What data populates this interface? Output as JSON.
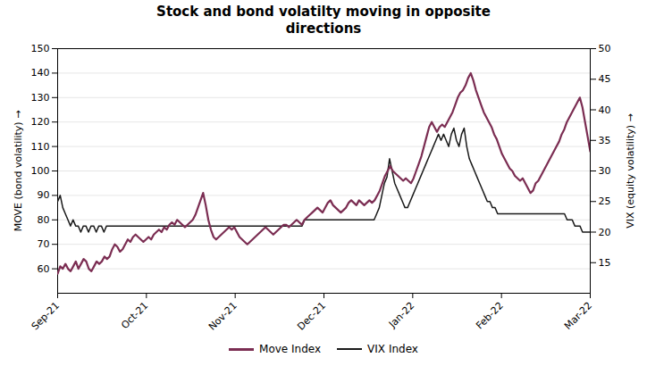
{
  "chart_data": {
    "type": "line",
    "title": "Stock and bond volatilty moving in opposite\ndirections",
    "ylabel": "MOVE (bond volatility)",
    "y2label": "VIX (equity volatility)",
    "xlim": [
      0,
      1
    ],
    "xticks": [
      {
        "value": 0,
        "label": "Sep-21"
      },
      {
        "value": 0.16666666666666666,
        "label": "Oct-21"
      },
      {
        "value": 0.3333333333333333,
        "label": "Nov-21"
      },
      {
        "value": 0.5,
        "label": "Dec-21"
      },
      {
        "value": 0.6666666666666666,
        "label": "Jan-22"
      },
      {
        "value": 0.8333333333333334,
        "label": "Feb-22"
      },
      {
        "value": 1,
        "label": "Mar-22"
      }
    ],
    "ylim": [
      50,
      150
    ],
    "yticks": [
      60,
      70,
      80,
      90,
      100,
      110,
      120,
      130,
      140,
      150
    ],
    "y2lim": [
      10,
      50
    ],
    "y2ticks": [
      15,
      20,
      25,
      30,
      35,
      40,
      45,
      50
    ],
    "grid": true,
    "legend": "bottom",
    "series": [
      {
        "name": "Move Index",
        "color": "#7B2D52",
        "values": [
          58,
          61,
          60,
          62,
          60,
          59,
          61,
          63,
          60,
          62,
          64,
          63,
          60,
          59,
          61,
          63,
          62,
          63,
          65,
          64,
          65,
          68,
          70,
          69,
          67,
          68,
          70,
          72,
          71,
          73,
          74,
          73,
          72,
          71,
          72,
          73,
          72,
          74,
          75,
          76,
          75,
          77,
          76,
          78,
          79,
          78,
          80,
          79,
          78,
          77,
          78,
          79,
          80,
          82,
          85,
          88,
          91,
          86,
          80,
          76,
          73,
          72,
          73,
          74,
          75,
          76,
          77,
          76,
          77,
          75,
          73,
          72,
          71,
          70,
          71,
          72,
          73,
          74,
          75,
          76,
          77,
          76,
          75,
          74,
          75,
          76,
          77,
          78,
          78,
          77,
          78,
          79,
          80,
          79,
          78,
          80,
          81,
          82,
          83,
          84,
          85,
          84,
          83,
          85,
          87,
          88,
          86,
          85,
          84,
          83,
          84,
          85,
          87,
          88,
          87,
          86,
          88,
          87,
          86,
          87,
          88,
          87,
          88,
          90,
          92,
          95,
          98,
          100,
          102,
          100,
          99,
          98,
          97,
          96,
          97,
          96,
          95,
          97,
          100,
          103,
          106,
          110,
          114,
          118,
          120,
          118,
          116,
          118,
          119,
          118,
          120,
          122,
          124,
          127,
          130,
          132,
          133,
          135,
          138,
          140,
          137,
          133,
          130,
          127,
          124,
          122,
          120,
          118,
          115,
          113,
          110,
          107,
          105,
          103,
          101,
          100,
          98,
          97,
          96,
          97,
          95,
          93,
          91,
          92,
          95,
          96,
          98,
          100,
          102,
          104,
          106,
          108,
          110,
          112,
          115,
          117,
          120,
          122,
          124,
          126,
          128,
          130,
          126,
          120,
          114,
          108
        ]
      },
      {
        "name": "VIX Index",
        "color": "#1a1a1a",
        "axis": "y2",
        "values": [
          25,
          26,
          24,
          23,
          22,
          21,
          22,
          21,
          21,
          20,
          21,
          21,
          20,
          21,
          21,
          20,
          21,
          21,
          20,
          21,
          21,
          21,
          21,
          21,
          21,
          21,
          21,
          21,
          21,
          21,
          21,
          21,
          21,
          21,
          21,
          21,
          21,
          21,
          21,
          21,
          21,
          21,
          21,
          21,
          21,
          21,
          21,
          21,
          21,
          21,
          21,
          21,
          21,
          21,
          21,
          21,
          21,
          21,
          21,
          21,
          21,
          21,
          21,
          21,
          21,
          21,
          21,
          21,
          21,
          21,
          21,
          21,
          21,
          21,
          21,
          21,
          21,
          21,
          21,
          21,
          21,
          21,
          21,
          21,
          21,
          21,
          21,
          21,
          21,
          21,
          21,
          21,
          21,
          21,
          21,
          21,
          22,
          22,
          22,
          22,
          22,
          22,
          22,
          22,
          22,
          22,
          22,
          22,
          22,
          22,
          22,
          22,
          22,
          22,
          22,
          22,
          22,
          22,
          22,
          22,
          22,
          22,
          22,
          22,
          23,
          24,
          26,
          28,
          29,
          32,
          30,
          28,
          27,
          26,
          25,
          24,
          24,
          25,
          26,
          27,
          28,
          29,
          30,
          31,
          32,
          33,
          34,
          35,
          36,
          35,
          36,
          35,
          34,
          36,
          37,
          35,
          34,
          36,
          37,
          34,
          32,
          31,
          30,
          29,
          28,
          27,
          26,
          25,
          25,
          24,
          24,
          23,
          23,
          23,
          23,
          23,
          23,
          23,
          23,
          23,
          23,
          23,
          23,
          23,
          23,
          23,
          23,
          23,
          23,
          23,
          23,
          23,
          23,
          23,
          23,
          23,
          23,
          23,
          22,
          22,
          22,
          21,
          21,
          21,
          20,
          20,
          20,
          20
        ]
      }
    ]
  }
}
